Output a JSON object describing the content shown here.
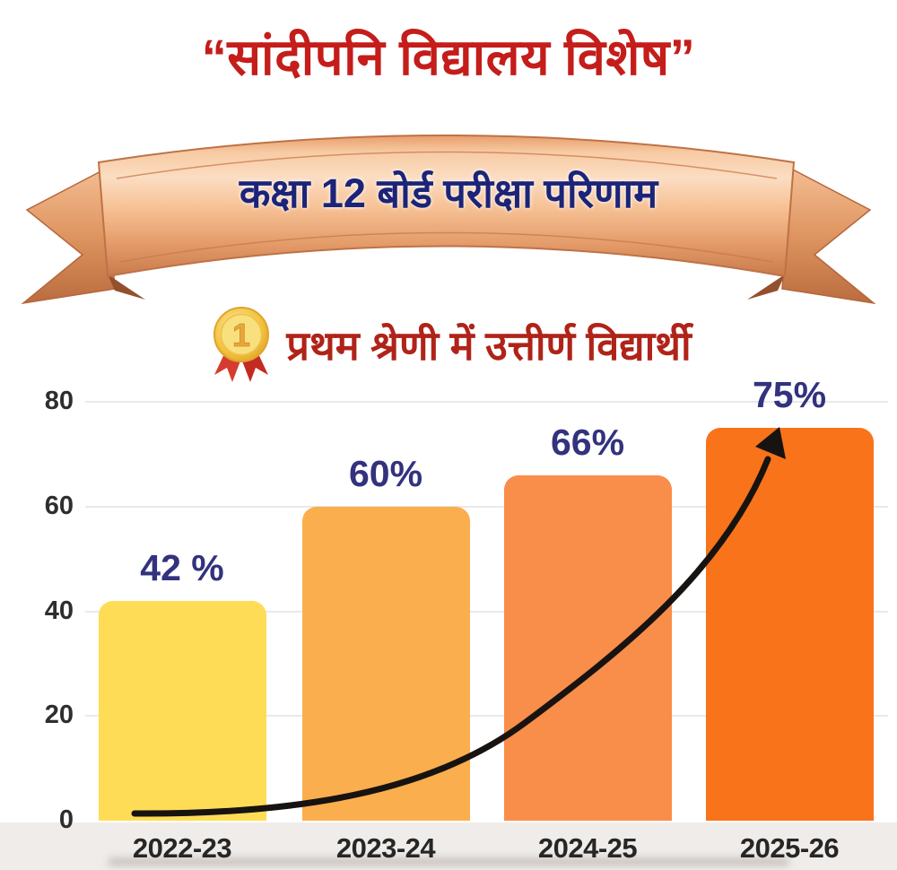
{
  "title": "“सांदीपनि विद्यालय विशेष”",
  "banner": {
    "text": "कक्षा 12 बोर्ड परीक्षा परिणाम",
    "ribbon_color": "#E89A66"
  },
  "subtitle": {
    "medal_icon": "gold-medal-first-place",
    "medal_number": "1",
    "text": "प्रथम श्रेणी में उत्तीर्ण विद्यार्थी"
  },
  "chart_data": {
    "type": "bar",
    "title": "प्रथम श्रेणी में उत्तीर्ण विद्यार्थी",
    "categories": [
      "2022-23",
      "2023-24",
      "2024-25",
      "2025-26"
    ],
    "values": [
      42,
      60,
      66,
      75
    ],
    "value_labels": [
      "42 %",
      "60%",
      "66%",
      "75%"
    ],
    "bar_colors": [
      "#FFDC55",
      "#FBAE4D",
      "#F98D4A",
      "#F8731A"
    ],
    "xlabel": "",
    "ylabel": "",
    "ylim": [
      0,
      80
    ],
    "yticks": [
      0,
      20,
      40,
      60,
      80
    ],
    "grid": true,
    "legend": "none",
    "annotations": [
      "black curved arrow rising from 2022-23 baseline to the top of the 2025-26 bar"
    ]
  },
  "colors": {
    "title_red": "#C41D1A",
    "banner_text_navy": "#1B2478",
    "subtitle_red": "#B02318",
    "value_label_navy": "#32327E",
    "axis_tick": "#2E2E2E",
    "gridline": "#E9E9E9",
    "arrow_black": "#171310",
    "bottom_strip": "#EFECE9"
  }
}
